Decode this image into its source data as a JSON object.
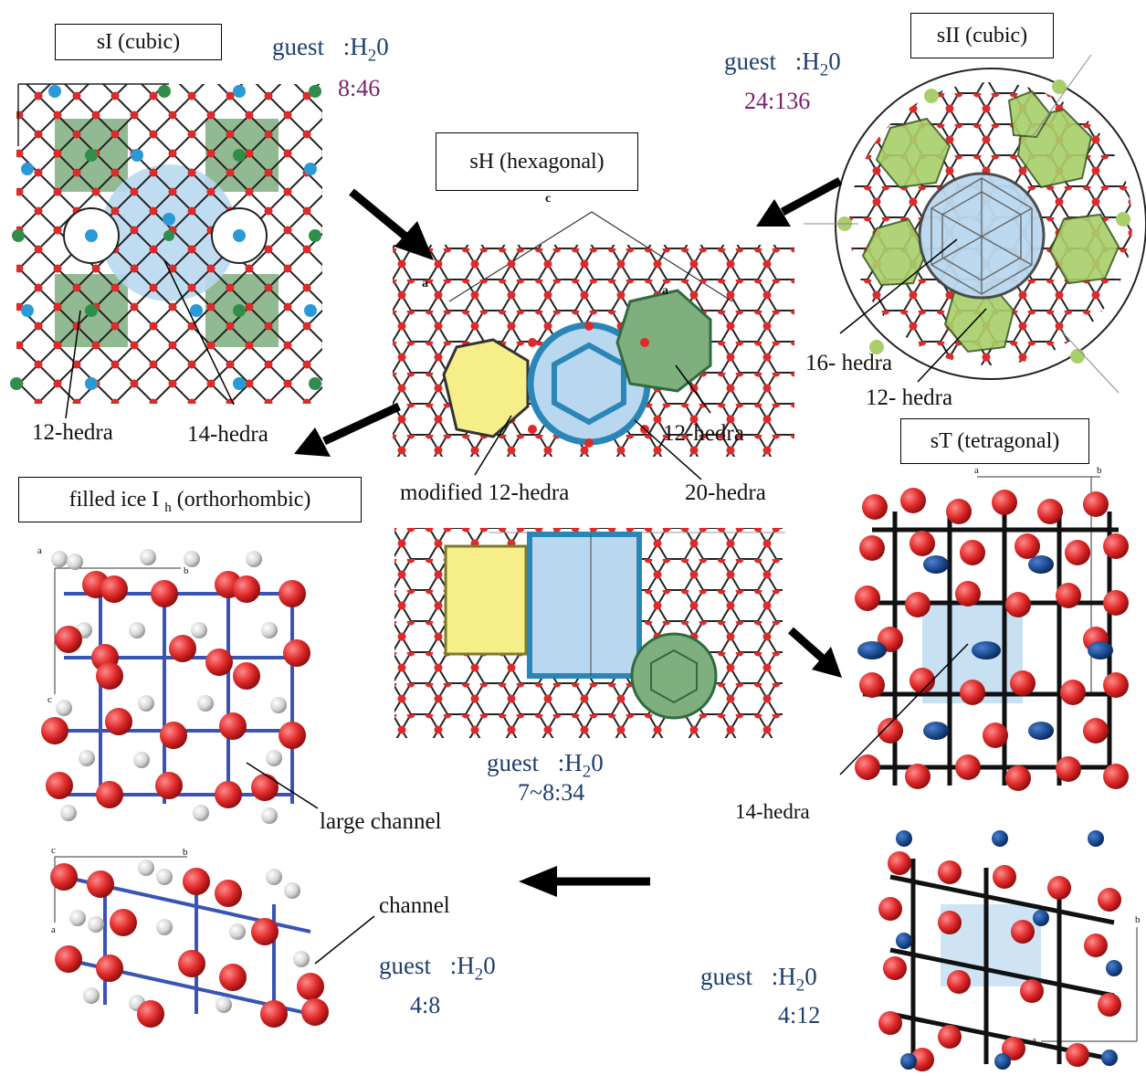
{
  "colors": {
    "oxygen": "#e02a2a",
    "bond": "#222222",
    "green_cage": "#7fae7f",
    "blue_cage": "#b9d8ef",
    "yellow_cage": "#f6ee88",
    "lime_cage": "#a9cf6a",
    "guest_blue": "#2a9ad6",
    "guest_green": "#2f8f4a",
    "guest_navy": "#1b4b8f",
    "guest_white": "#d9d9d9",
    "cell_bond": "#3a54b4",
    "text_blue": "#1e3f6e",
    "text_purple": "#7a1f6e"
  },
  "structures": {
    "sI": {
      "title": "sI (cubic)",
      "guest_label": "guest",
      "colon_h": ":H",
      "sub_2": "2",
      "o_char": "0",
      "ratio": "8:46",
      "labels": [
        "12-hedra",
        "14-hedra"
      ]
    },
    "sII": {
      "title": "sII (cubic)",
      "guest_label": "guest",
      "colon_h": ":H",
      "sub_2": "2",
      "o_char": "0",
      "ratio": "24:136",
      "labels": [
        "16- hedra",
        "12- hedra"
      ]
    },
    "sH": {
      "title": "sH (hexagonal)",
      "axis_c": "c",
      "axis_a1": "a",
      "axis_a2": "a",
      "guest_label": "guest",
      "colon_h": ":H",
      "sub_2": "2",
      "o_char": "0",
      "ratio": "7~8:34",
      "labels": [
        "12-hedra",
        "modified 12-hedra",
        "20-hedra"
      ]
    },
    "sT": {
      "title": "sT (tetragonal)",
      "axis_a": "a",
      "axis_b": "b",
      "axis_b2": "b",
      "axis_a2": "a",
      "guest_label": "guest",
      "colon_h": ":H",
      "sub_2": "2",
      "o_char": "0",
      "ratio": "4:12",
      "labels": [
        "14-hedra"
      ]
    },
    "filled_ice": {
      "title_main": "filled ice I",
      "title_sub": "h",
      "title_rest": "(orthorhombic)",
      "axis_a": "a",
      "axis_b": "b",
      "axis_c": "c",
      "axis_c2": "c",
      "axis_b2": "b",
      "axis_a2": "a",
      "guest_label": "guest",
      "colon_h": ":H",
      "sub_2": "2",
      "o_char": "0",
      "ratio": "4:8",
      "labels": [
        "large channel",
        "channel"
      ]
    }
  }
}
